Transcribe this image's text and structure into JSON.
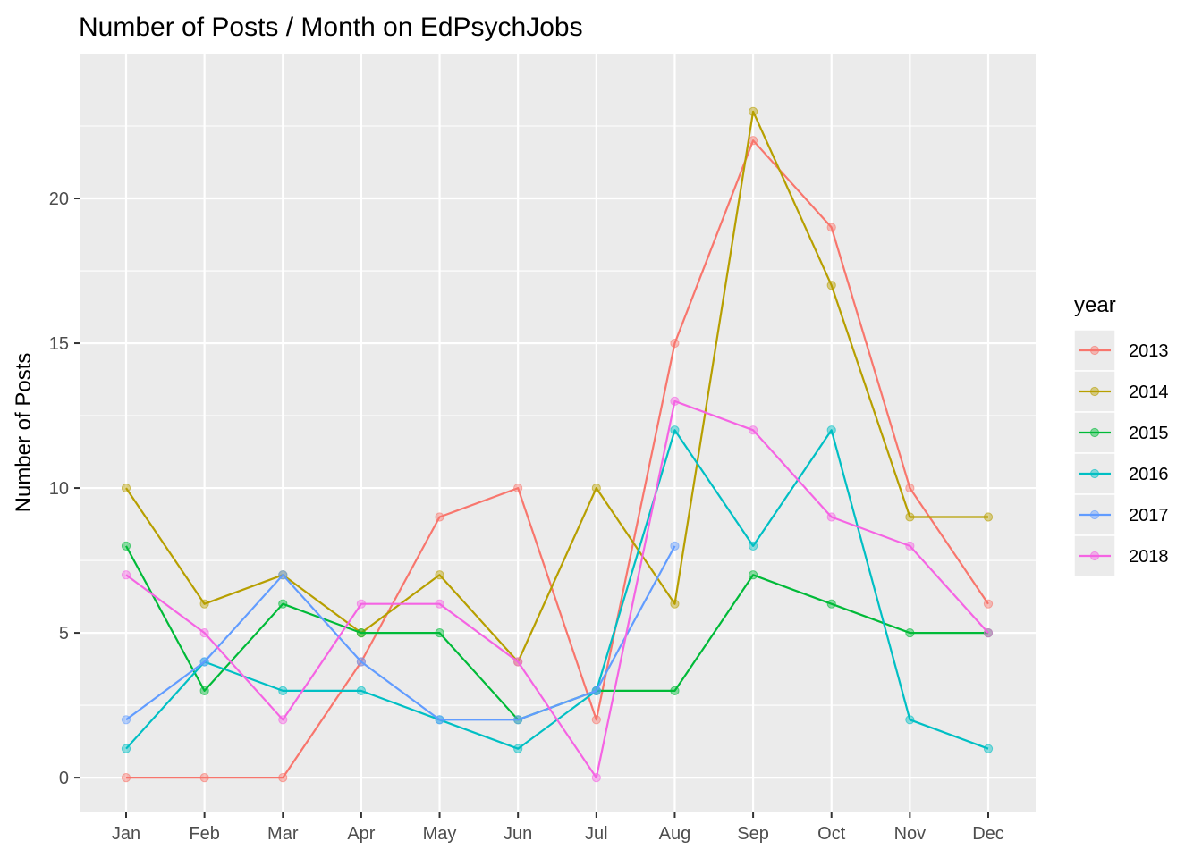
{
  "chart_data": {
    "type": "line",
    "title": "Number of Posts / Month on EdPsychJobs",
    "xlabel": "",
    "ylabel": "Number of Posts",
    "categories": [
      "Jan",
      "Feb",
      "Mar",
      "Apr",
      "May",
      "Jun",
      "Jul",
      "Aug",
      "Sep",
      "Oct",
      "Nov",
      "Dec"
    ],
    "ylim": [
      -1.2,
      25
    ],
    "yticks": [
      0,
      5,
      10,
      15,
      20
    ],
    "grid": true,
    "legend": {
      "title": "year",
      "position": "right"
    },
    "series": [
      {
        "name": "2013",
        "color": "#F8766D",
        "values": [
          0,
          0,
          0,
          4,
          9,
          10,
          2,
          15,
          22,
          19,
          10,
          6
        ]
      },
      {
        "name": "2014",
        "color": "#B79F00",
        "values": [
          10,
          6,
          7,
          5,
          7,
          4,
          10,
          6,
          23,
          17,
          9,
          9
        ]
      },
      {
        "name": "2015",
        "color": "#00BA38",
        "values": [
          8,
          3,
          6,
          5,
          5,
          2,
          3,
          3,
          7,
          6,
          5,
          5
        ]
      },
      {
        "name": "2016",
        "color": "#00BFC4",
        "values": [
          1,
          4,
          3,
          3,
          2,
          1,
          3,
          12,
          8,
          12,
          2,
          1
        ]
      },
      {
        "name": "2017",
        "color": "#619CFF",
        "values": [
          2,
          4,
          7,
          4,
          2,
          2,
          3,
          8,
          null,
          null,
          null,
          null
        ]
      },
      {
        "name": "2018",
        "color": "#F564E3",
        "values": [
          7,
          5,
          2,
          6,
          6,
          4,
          0,
          13,
          12,
          9,
          8,
          5
        ]
      }
    ]
  }
}
